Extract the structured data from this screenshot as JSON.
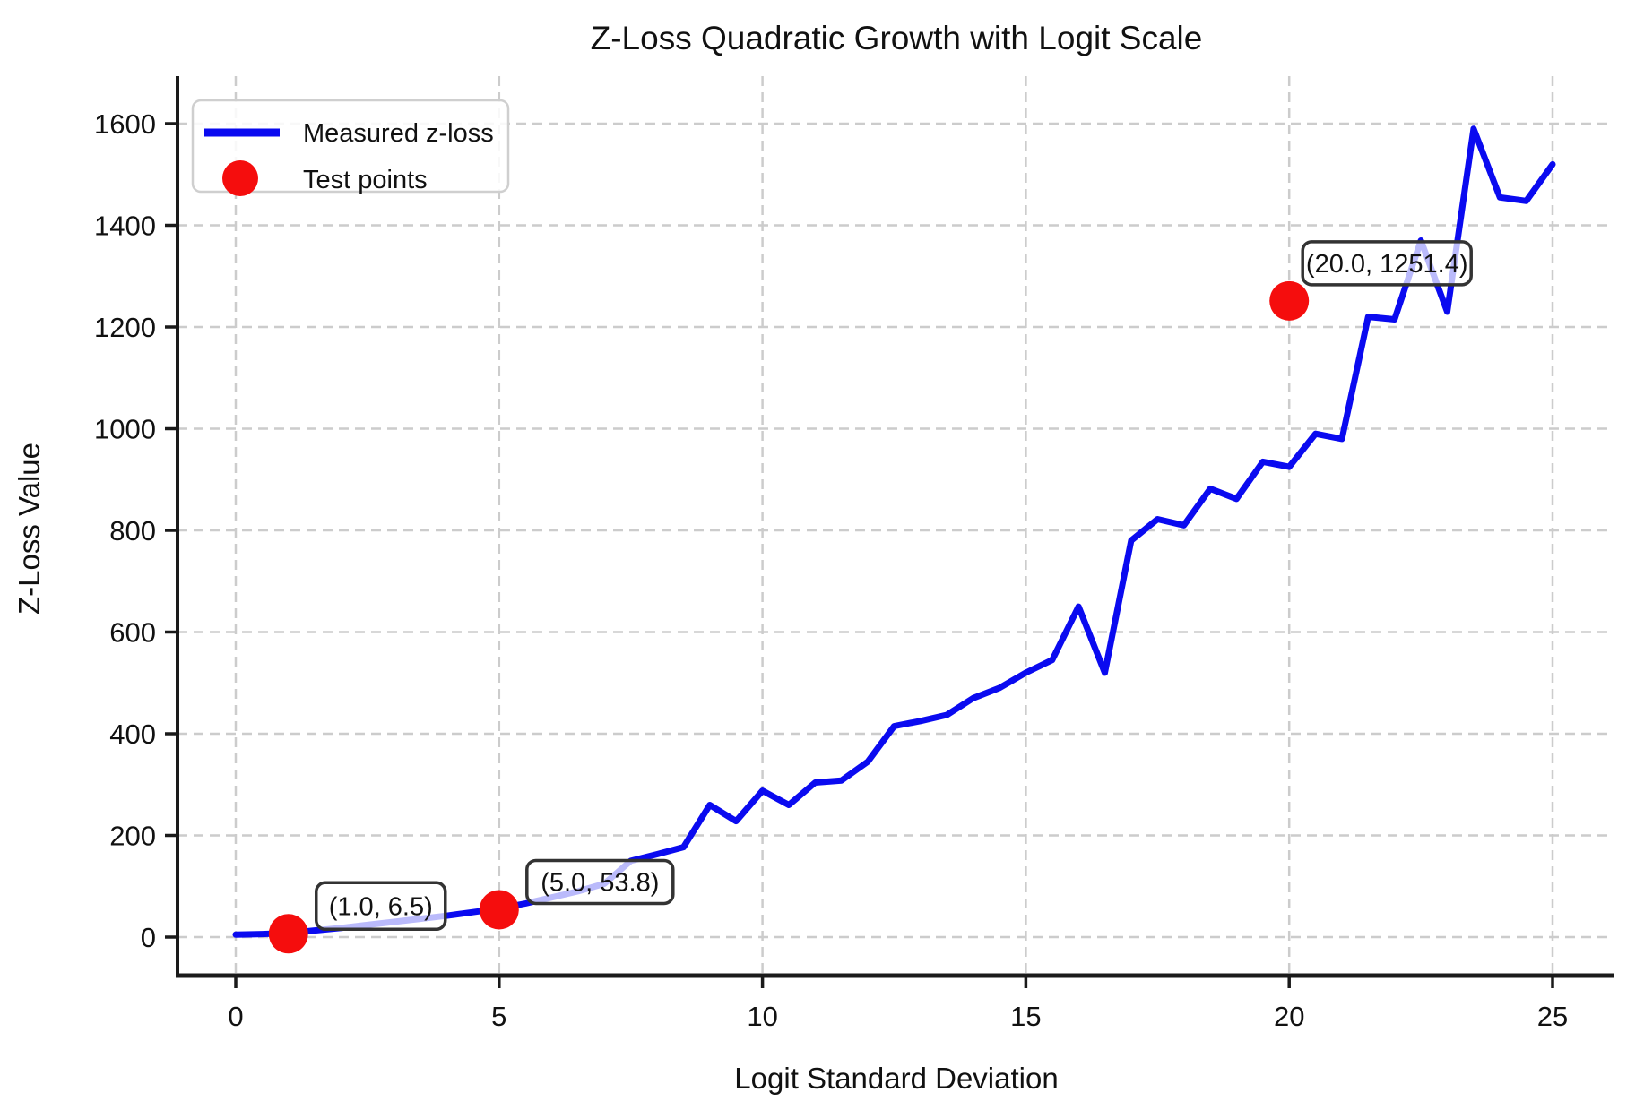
{
  "title": "Z-Loss Quadratic Growth with Logit Scale",
  "xlabel": "Logit Standard Deviation",
  "ylabel": "Z-Loss Value",
  "legend": {
    "line_label": "Measured z-loss",
    "points_label": "Test points"
  },
  "colors": {
    "line": "#0a0af0",
    "points": "#f50d0d",
    "grid": "#cccccc",
    "spine": "#1a1a1a",
    "annotation_edge": "#333333",
    "legend_edge": "#cfcfcf"
  },
  "chart_data": {
    "type": "line",
    "title": "Z-Loss Quadratic Growth with Logit Scale",
    "xlabel": "Logit Standard Deviation",
    "ylabel": "Z-Loss Value",
    "grid": true,
    "grid_style": "dashed",
    "legend_position": "upper left",
    "xticks": [
      0,
      5,
      10,
      15,
      20,
      25
    ],
    "yticks": [
      0,
      200,
      400,
      600,
      800,
      1000,
      1200,
      1400,
      1600
    ],
    "xlim": [
      -1.1,
      26.2
    ],
    "ylim": [
      -75,
      1693
    ],
    "series": [
      {
        "name": "Measured z-loss",
        "x": [
          0,
          0.5,
          1,
          1.5,
          2,
          2.5,
          3,
          3.5,
          4,
          4.5,
          5,
          5.5,
          6,
          6.5,
          7,
          7.5,
          8,
          8.5,
          9,
          9.5,
          10,
          10.5,
          11,
          11.5,
          12,
          12.5,
          13,
          13.5,
          14,
          14.5,
          15,
          15.5,
          16,
          16.5,
          17,
          17.5,
          18,
          18.5,
          19,
          19.5,
          20,
          20.5,
          21,
          21.5,
          22,
          22.5,
          23,
          23.5,
          24,
          24.5,
          25
        ],
        "y": [
          5,
          6,
          8,
          13,
          18,
          24,
          30,
          36,
          42,
          49,
          56,
          66,
          78,
          90,
          105,
          150,
          163,
          177,
          260,
          228,
          288,
          260,
          304,
          308,
          345,
          415,
          425,
          437,
          470,
          490,
          520,
          545,
          650,
          520,
          780,
          822,
          810,
          882,
          862,
          935,
          925,
          990,
          980,
          1220,
          1215,
          1370,
          1230,
          1590,
          1455,
          1448,
          1520
        ]
      }
    ],
    "test_points": [
      {
        "x": 1.0,
        "y": 6.5,
        "label": "(1.0, 6.5)"
      },
      {
        "x": 5.0,
        "y": 53.8,
        "label": "(5.0, 53.8)"
      },
      {
        "x": 20.0,
        "y": 1251.4,
        "label": "(20.0, 1251.4)"
      }
    ]
  }
}
